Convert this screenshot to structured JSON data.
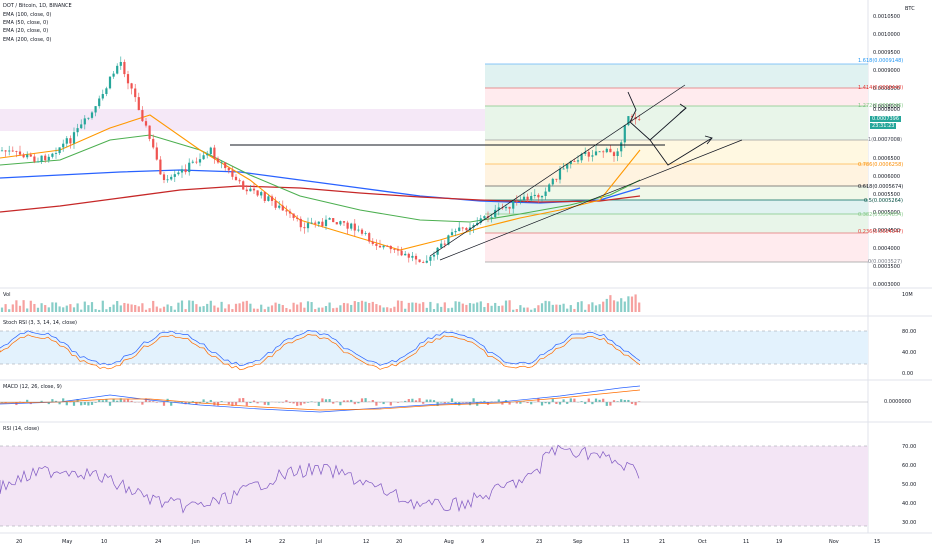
{
  "symbol": "DOT / Bitcoin, 1D, BINANCE",
  "quote_currency": "BTC",
  "indicators": {
    "ema100": "EMA (100, close, 0)",
    "ema50": "EMA (50, close, 0)",
    "ema20": "EMA (20, close, 0)",
    "ema200": "EMA (200, close, 0)",
    "vol": "Vol",
    "stoch": "Stoch RSI (3, 3, 14, 14, close)",
    "macd": "MACD (12, 26, close, 9)",
    "rsi": "RSI (14, close)"
  },
  "price_axis": [
    "0.0010500",
    "0.0010000",
    "0.0009500",
    "0.0009000",
    "0.0008500",
    "0.0008000",
    "0.0007500",
    "0.0007000",
    "0.0006500",
    "0.0006000",
    "0.0005500",
    "0.0005000",
    "0.0004500",
    "0.0004000",
    "0.0003500",
    "0.0003000"
  ],
  "current_price": {
    "value": "0.0007396",
    "countdown": "23:31:23"
  },
  "vol_axis": "10M",
  "stoch_axis": [
    "80.00",
    "40.00",
    "0.00"
  ],
  "macd_axis": "0.0000000",
  "rsi_axis": [
    "70.00",
    "60.00",
    "50.00",
    "40.00",
    "30.00"
  ],
  "time_axis": [
    "20",
    "May",
    "10",
    "24",
    "Jun",
    "14",
    "22",
    "Jul",
    "12",
    "20",
    "Aug",
    "9",
    "23",
    "Sep",
    "13",
    "21",
    "Oct",
    "11",
    "19",
    "Nov",
    "15"
  ],
  "fib_labels": {
    "f1618": "1.618(0.0009148)",
    "f1414": "1.414(0.0008440)",
    "f1272": "1.272(0.0007946)",
    "f1": "1(0.0007001)",
    "f0786": "0.786(0.0006258)",
    "f0618": "0.618(0.0005674)",
    "f05": "0.5(0.0005264)",
    "f0382": "0.382(0.0004854)",
    "f0236": "0.236(0.0004347)",
    "f0": "0(0.0003527)"
  },
  "colors": {
    "bull": "#26a69a",
    "bear": "#ef5350",
    "ema100": "#2962ff",
    "ema50": "#4caf50",
    "ema20": "#ff9800",
    "ema200": "#c62828",
    "oscillator_band": "#e3f2fd",
    "rsi_band": "#f3e5f5"
  }
}
